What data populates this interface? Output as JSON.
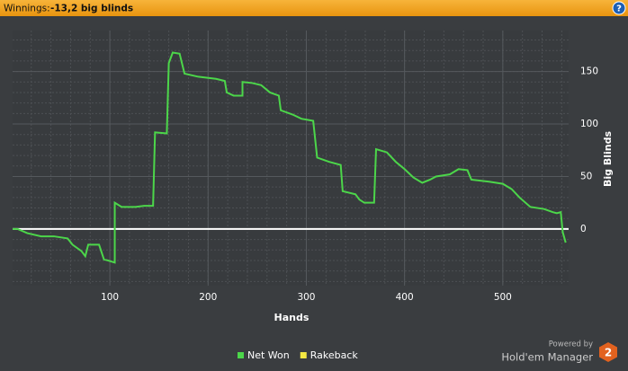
{
  "header": {
    "label": "Winnings:",
    "value": "-13,2 big blinds",
    "help": "?"
  },
  "chart_data": {
    "type": "line",
    "x_label": "Hands",
    "y_label": "Big Blinds",
    "xlim": [
      1,
      567
    ],
    "ylim": [
      -54,
      189
    ],
    "xticks": [
      100,
      200,
      300,
      400,
      500
    ],
    "yticks": [
      0,
      50,
      100,
      150
    ],
    "grid": true,
    "zero_line_color": "#ffffff",
    "x": [
      1,
      6,
      16,
      30,
      43,
      57,
      62,
      71,
      75,
      78,
      84,
      89,
      94,
      98,
      105,
      105,
      112,
      126,
      135,
      144,
      146,
      158,
      160,
      164,
      171,
      176,
      190,
      208,
      217,
      219,
      226,
      235,
      235,
      245,
      254,
      263,
      272,
      274,
      286,
      295,
      307,
      311,
      323,
      335,
      337,
      350,
      354,
      359,
      369,
      371,
      382,
      391,
      400,
      409,
      418,
      426,
      432,
      446,
      455,
      464,
      468,
      486,
      500,
      509,
      517,
      528,
      542,
      551,
      555,
      559,
      561,
      564
    ],
    "series": [
      {
        "name": "Net Won",
        "color": "#4cd64a",
        "values": [
          0,
          0,
          -4,
          -7,
          -7,
          -9,
          -15,
          -21,
          -26,
          -15,
          -15,
          -15,
          -29,
          -30,
          -32,
          25,
          21,
          21,
          22,
          22,
          92,
          91,
          158,
          168,
          167,
          148,
          145,
          143,
          141,
          130,
          127,
          127,
          140,
          139,
          137,
          130,
          127,
          113,
          109,
          105,
          103,
          68,
          64,
          61,
          36,
          33,
          28,
          25,
          25,
          76,
          73,
          64,
          57,
          49,
          44,
          47,
          50,
          52,
          57,
          56,
          47,
          45,
          43,
          38,
          30,
          21,
          19,
          16,
          15,
          16,
          -3,
          -13
        ]
      }
    ],
    "legend": [
      {
        "name": "Net Won",
        "color": "#4cd64a"
      },
      {
        "name": "Rakeback",
        "color": "#f4e842"
      }
    ]
  },
  "footer": {
    "powered": "Powered by",
    "brand": "Hold'em Manager",
    "version": "2"
  }
}
